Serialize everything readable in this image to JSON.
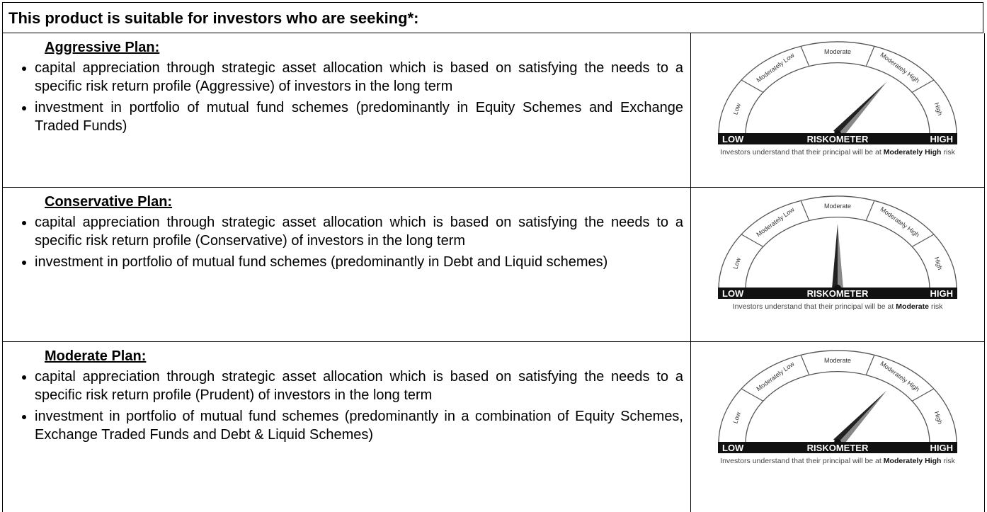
{
  "header": {
    "title": "This product is suitable for investors who are seeking*:"
  },
  "riskometer": {
    "segments": [
      "Low",
      "Moderately Low",
      "Moderate",
      "Moderately High",
      "High"
    ],
    "bar": {
      "low": "LOW",
      "name": "RISKOMETER",
      "high": "HIGH"
    }
  },
  "rows": [
    {
      "title": "Aggressive Plan:",
      "bullets": [
        "capital appreciation through strategic asset allocation which is based on satisfying the needs to a specific risk return profile (Aggressive) of investors in the long term",
        "investment in portfolio of mutual fund schemes (predominantly in Equity Schemes and Exchange Traded Funds)"
      ],
      "caption": {
        "prefix": "Investors understand that their principal will be at",
        "level": "Moderately High",
        "suffix": "risk"
      }
    },
    {
      "title": "Conservative Plan:",
      "bullets": [
        "capital appreciation through strategic asset allocation which is based on satisfying the needs to a specific risk return profile (Conservative) of investors in the long term",
        "investment in portfolio of mutual fund schemes (predominantly in Debt and Liquid schemes)"
      ],
      "caption": {
        "prefix": "Investors understand that their principal will be at",
        "level": "Moderate",
        "suffix": "risk"
      }
    },
    {
      "title": "Moderate Plan:",
      "bullets": [
        "capital appreciation through strategic asset allocation which is based on satisfying the needs to a specific risk return profile (Prudent) of investors in the long term",
        "investment in portfolio of mutual fund schemes (predominantly in a combination of Equity Schemes, Exchange Traded Funds and Debt & Liquid Schemes)"
      ],
      "caption": {
        "prefix": "Investors understand that their principal will be at",
        "level": "Moderately High",
        "suffix": "risk"
      }
    }
  ]
}
